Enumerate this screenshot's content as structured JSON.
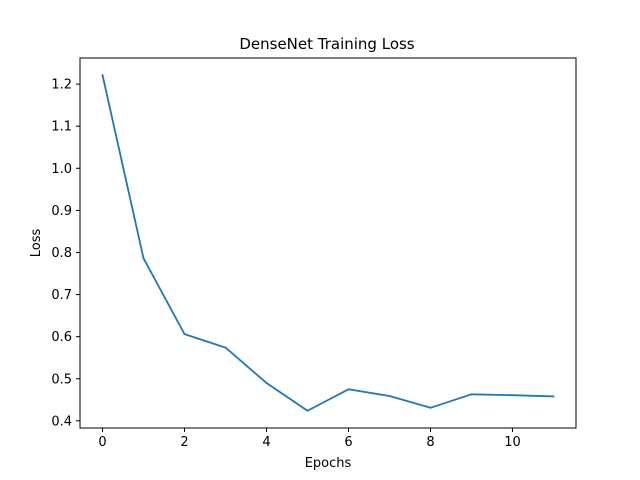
{
  "chart_data": {
    "type": "line",
    "title": "DenseNet Training Loss",
    "xlabel": "Epochs",
    "ylabel": "Loss",
    "x": [
      0,
      1,
      2,
      3,
      4,
      5,
      6,
      7,
      8,
      9,
      10,
      11
    ],
    "series": [
      {
        "values": [
          1.221,
          0.786,
          0.606,
          0.574,
          0.49,
          0.424,
          0.475,
          0.459,
          0.431,
          0.463,
          0.461,
          0.458
        ],
        "color": "#1f77b4"
      }
    ],
    "xlim": [
      -0.55,
      11.55
    ],
    "ylim": [
      0.383,
      1.262
    ],
    "xticks": [
      0,
      2,
      4,
      6,
      8,
      10
    ],
    "yticks": [
      0.4,
      0.5,
      0.6,
      0.7,
      0.8,
      0.9,
      1.0,
      1.1,
      1.2
    ],
    "ytick_labels": [
      "0.4",
      "0.5",
      "0.6",
      "0.7",
      "0.8",
      "0.9",
      "1.0",
      "1.1",
      "1.2"
    ],
    "grid": false,
    "legend": false
  }
}
